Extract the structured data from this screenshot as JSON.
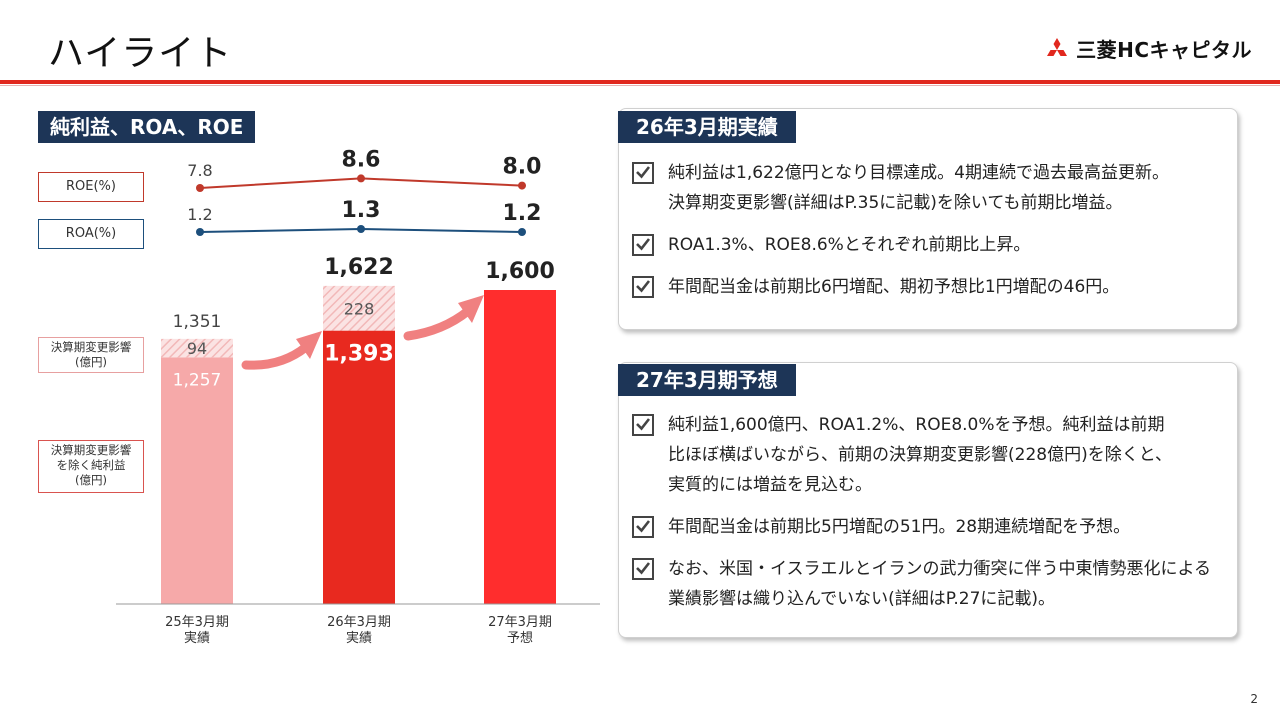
{
  "header": {
    "title": "ハイライト",
    "logo_text": "三菱HCキャピタル"
  },
  "left": {
    "section_label": "純利益、ROA、ROE",
    "legend_roe": "ROE(%)",
    "legend_roa": "ROA(%)",
    "note_impact": [
      "決算期変更影響",
      "(億円)"
    ],
    "note_excluding": [
      "決算期変更影響",
      "を除く純利益",
      "(億円)"
    ]
  },
  "chart_data": {
    "type": "bar",
    "categories": [
      [
        "25年3月期",
        "実績"
      ],
      [
        "26年3月期",
        "実績"
      ],
      [
        "27年3月期",
        "予想"
      ]
    ],
    "series": [
      {
        "name": "決算期変更影響を除く純利益(億円)",
        "values": [
          1257,
          1393,
          1600
        ]
      },
      {
        "name": "決算期変更影響(億円)",
        "values": [
          94,
          228,
          0
        ]
      }
    ],
    "totals": [
      1351,
      1622,
      1600
    ],
    "stack_labels": [
      "1,257",
      "1,393",
      ""
    ],
    "impact_labels": [
      "94",
      "228",
      ""
    ],
    "total_labels": [
      "1,351",
      "1,622",
      "1,600"
    ],
    "lines": [
      {
        "name": "ROE(%)",
        "values": [
          7.8,
          8.6,
          8.0
        ],
        "labels": [
          "7.8",
          "8.6",
          "8.0"
        ],
        "color": "#c0392b"
      },
      {
        "name": "ROA(%)",
        "values": [
          1.2,
          1.3,
          1.2
        ],
        "labels": [
          "1.2",
          "1.3",
          "1.2"
        ],
        "color": "#1d4f7c"
      }
    ],
    "colors": {
      "bar_past": "#f6a9a9",
      "bar_current": "#e8291f",
      "bar_forecast": "#ff2d2d",
      "impact_hatch": "#f2b8b8",
      "arrow": "#f08080"
    },
    "ylim": [
      0,
      1800
    ]
  },
  "panel1": {
    "title": "26年3月期実績",
    "bullets": [
      [
        "純利益は1,622億円となり目標達成。4期連続で過去最高益更新。",
        "決算期変更影響(詳細はP.35に記載)を除いても前期比増益。"
      ],
      [
        "ROA1.3%、ROE8.6%とそれぞれ前期比上昇。"
      ],
      [
        "年間配当金は前期比6円増配、期初予想比1円増配の46円。"
      ]
    ]
  },
  "panel2": {
    "title": "27年3月期予想",
    "bullets": [
      [
        "純利益1,600億円、ROA1.2%、ROE8.0%を予想。純利益は前期",
        "比ほぼ横ばいながら、前期の決算期変更影響(228億円)を除くと、",
        "実質的には増益を見込む。"
      ],
      [
        "年間配当金は前期比5円増配の51円。28期連続増配を予想。"
      ],
      [
        "なお、米国・イスラエルとイランの武力衝突に伴う中東情勢悪化による",
        "業績影響は織り込んでいない(詳細はP.27に記載)。"
      ]
    ]
  },
  "page_number": "2"
}
